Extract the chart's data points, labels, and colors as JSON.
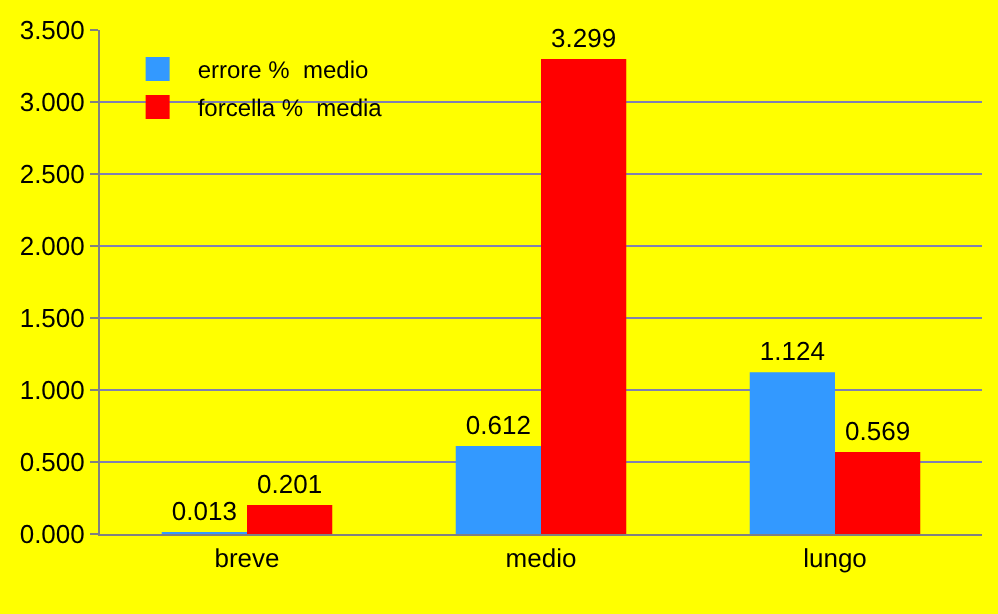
{
  "chart_data": {
    "type": "bar",
    "categories": [
      "breve",
      "medio",
      "lungo"
    ],
    "series": [
      {
        "name": "errore %  medio",
        "color": "#3399ff",
        "values": [
          0.013,
          0.612,
          1.124
        ]
      },
      {
        "name": "forcella %  media",
        "color": "#ff0000",
        "values": [
          0.201,
          3.299,
          0.569
        ]
      }
    ],
    "ylim": [
      0,
      3.5
    ],
    "yticks": [
      {
        "value": 0,
        "label": "0.000"
      },
      {
        "value": 0.5,
        "label": "0.500"
      },
      {
        "value": 1,
        "label": "1.000"
      },
      {
        "value": 1.5,
        "label": "1.500"
      },
      {
        "value": 2,
        "label": "2.000"
      },
      {
        "value": 2.5,
        "label": "2.500"
      },
      {
        "value": 3,
        "label": "3.000"
      },
      {
        "value": 3.5,
        "label": "3.500"
      }
    ],
    "data_labels": true,
    "grid": "y",
    "legend": "top left"
  }
}
